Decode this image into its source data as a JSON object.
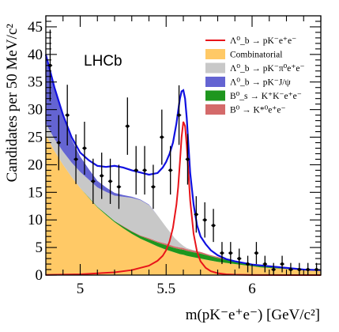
{
  "chart_data": {
    "type": "line",
    "xlabel": "m(pK⁻e⁺e⁻) [GeV/c²]",
    "ylabel": "Candidates per 50 MeV/c²",
    "xlim": [
      4.8,
      6.4
    ],
    "ylim": [
      0,
      47
    ],
    "x_ticks": [
      5,
      5.5,
      6
    ],
    "y_ticks": [
      0,
      5,
      10,
      15,
      20,
      25,
      30,
      35,
      40,
      45
    ],
    "annotation": "LHCb",
    "legend_position": "top-right",
    "grid": false,
    "legend": [
      {
        "label": "Λ⁰_b → pK⁻e⁺e⁻",
        "kind": "line",
        "color": "#e8141a"
      },
      {
        "label": "Combinatorial",
        "kind": "fill",
        "color": "#ffc966"
      },
      {
        "label": "Λ⁰_b → pK⁻π⁰e⁺e⁻",
        "kind": "fill",
        "color": "#c8c8c8"
      },
      {
        "label": "Λ⁰_b → pK⁻J/ψ",
        "kind": "fill",
        "color": "#6464d2"
      },
      {
        "label": "B⁰_s → K⁺K⁻e⁺e⁻",
        "kind": "fill",
        "color": "#1e961e"
      },
      {
        "label": "B⁰ → K*⁰e⁺e⁻",
        "kind": "fill",
        "color": "#d46a6a"
      }
    ],
    "data_points": [
      {
        "x": 4.825,
        "y": 38,
        "err": 6.5
      },
      {
        "x": 4.875,
        "y": 24,
        "err": 5
      },
      {
        "x": 4.925,
        "y": 29,
        "err": 5.5
      },
      {
        "x": 4.975,
        "y": 21,
        "err": 4.5
      },
      {
        "x": 5.025,
        "y": 23,
        "err": 4.8
      },
      {
        "x": 5.075,
        "y": 17,
        "err": 4.1
      },
      {
        "x": 5.125,
        "y": 18,
        "err": 4.2
      },
      {
        "x": 5.175,
        "y": 17,
        "err": 4.1
      },
      {
        "x": 5.225,
        "y": 16,
        "err": 4
      },
      {
        "x": 5.275,
        "y": 27,
        "err": 5.2
      },
      {
        "x": 5.325,
        "y": 19,
        "err": 4.4
      },
      {
        "x": 5.375,
        "y": 19,
        "err": 4.4
      },
      {
        "x": 5.425,
        "y": 16,
        "err": 4
      },
      {
        "x": 5.475,
        "y": 25,
        "err": 5
      },
      {
        "x": 5.525,
        "y": 19,
        "err": 4.4
      },
      {
        "x": 5.575,
        "y": 29,
        "err": 5.4
      },
      {
        "x": 5.625,
        "y": 21,
        "err": 4.6
      },
      {
        "x": 5.675,
        "y": 11,
        "err": 3.3
      },
      {
        "x": 5.725,
        "y": 10,
        "err": 3.2
      },
      {
        "x": 5.775,
        "y": 9,
        "err": 3
      },
      {
        "x": 5.825,
        "y": 4,
        "err": 2
      },
      {
        "x": 5.875,
        "y": 4,
        "err": 2
      },
      {
        "x": 5.925,
        "y": 3,
        "err": 1.8
      },
      {
        "x": 5.975,
        "y": 2,
        "err": 1.5
      },
      {
        "x": 6.025,
        "y": 4,
        "err": 2
      },
      {
        "x": 6.075,
        "y": 2,
        "err": 1.5
      },
      {
        "x": 6.125,
        "y": 1,
        "err": 1.2
      },
      {
        "x": 6.175,
        "y": 2,
        "err": 1.5
      },
      {
        "x": 6.225,
        "y": 1,
        "err": 1.2
      },
      {
        "x": 6.275,
        "y": 1,
        "err": 1.2
      },
      {
        "x": 6.325,
        "y": 1,
        "err": 1.2
      },
      {
        "x": 6.375,
        "y": 1,
        "err": 1.2
      }
    ],
    "series": {
      "x": [
        4.8,
        4.85,
        4.9,
        4.95,
        5.0,
        5.05,
        5.1,
        5.15,
        5.2,
        5.25,
        5.3,
        5.35,
        5.4,
        5.45,
        5.5,
        5.55,
        5.58,
        5.6,
        5.62,
        5.65,
        5.7,
        5.75,
        5.8,
        5.85,
        5.9,
        5.95,
        6.0,
        6.05,
        6.1,
        6.15,
        6.2,
        6.25,
        6.3,
        6.35,
        6.4
      ],
      "combinatorial": [
        25.5,
        22.5,
        20.0,
        17.8,
        15.8,
        14.0,
        12.3,
        10.9,
        9.6,
        8.5,
        7.5,
        6.6,
        5.9,
        5.2,
        4.6,
        4.1,
        3.8,
        3.7,
        3.5,
        3.3,
        3.0,
        2.7,
        2.4,
        2.2,
        2.0,
        1.8,
        1.6,
        1.4,
        1.3,
        1.2,
        1.1,
        1.0,
        0.9,
        0.8,
        0.8
      ],
      "bs_kkee": [
        0.0,
        0.0,
        0.0,
        0.0,
        0.0,
        0.1,
        0.1,
        0.2,
        0.2,
        0.3,
        0.4,
        0.5,
        0.6,
        0.7,
        0.8,
        0.8,
        0.9,
        0.9,
        0.9,
        0.9,
        0.9,
        0.8,
        0.7,
        0.6,
        0.5,
        0.4,
        0.3,
        0.2,
        0.2,
        0.1,
        0.1,
        0.1,
        0.0,
        0.0,
        0.0
      ],
      "b0_kstee": [
        0.0,
        0.0,
        0.0,
        0.0,
        0.0,
        0.0,
        0.0,
        0.0,
        0.0,
        0.1,
        0.1,
        0.1,
        0.2,
        0.2,
        0.3,
        0.3,
        0.3,
        0.3,
        0.3,
        0.3,
        0.3,
        0.2,
        0.2,
        0.1,
        0.1,
        0.1,
        0.0,
        0.0,
        0.0,
        0.0,
        0.0,
        0.0,
        0.0,
        0.0,
        0.0
      ],
      "pkpi0ee": [
        2.0,
        2.2,
        2.4,
        2.6,
        2.9,
        3.2,
        3.5,
        4.0,
        4.6,
        5.3,
        6.0,
        6.4,
        6.0,
        4.7,
        3.0,
        1.5,
        0.8,
        0.4,
        0.2,
        0.1,
        0.0,
        0.0,
        0.0,
        0.0,
        0.0,
        0.0,
        0.0,
        0.0,
        0.0,
        0.0,
        0.0,
        0.0,
        0.0,
        0.0,
        0.0
      ],
      "pkjpsi": [
        12.0,
        9.0,
        6.2,
        4.2,
        2.8,
        1.9,
        1.2,
        0.8,
        0.5,
        0.3,
        0.2,
        0.1,
        0.1,
        0.0,
        0.0,
        0.0,
        0.0,
        0.0,
        0.0,
        0.0,
        0.0,
        0.0,
        0.0,
        0.0,
        0.0,
        0.0,
        0.0,
        0.0,
        0.0,
        0.0,
        0.0,
        0.0,
        0.0,
        0.0,
        0.0
      ],
      "signal_x": [
        4.8,
        5.0,
        5.2,
        5.3,
        5.4,
        5.45,
        5.48,
        5.5,
        5.52,
        5.54,
        5.56,
        5.57,
        5.58,
        5.59,
        5.6,
        5.61,
        5.62,
        5.63,
        5.64,
        5.66,
        5.68,
        5.7,
        5.73,
        5.76,
        5.8,
        5.85,
        5.9,
        6.0,
        6.2,
        6.4
      ],
      "signal": [
        0.05,
        0.15,
        0.5,
        0.9,
        1.7,
        2.6,
        3.5,
        4.5,
        6.1,
        8.6,
        12.8,
        16.0,
        20.5,
        25.0,
        27.8,
        27.0,
        23.5,
        18.5,
        13.5,
        7.5,
        4.2,
        2.5,
        1.3,
        0.7,
        0.35,
        0.15,
        0.07,
        0.02,
        0.0,
        0.0
      ],
      "total_x": [
        4.8,
        4.85,
        4.9,
        4.95,
        5.0,
        5.05,
        5.1,
        5.15,
        5.2,
        5.25,
        5.3,
        5.35,
        5.4,
        5.45,
        5.48,
        5.5,
        5.52,
        5.54,
        5.56,
        5.57,
        5.58,
        5.59,
        5.6,
        5.61,
        5.62,
        5.63,
        5.64,
        5.66,
        5.68,
        5.7,
        5.73,
        5.76,
        5.8,
        5.85,
        5.9,
        6.0,
        6.1,
        6.2,
        6.3,
        6.4
      ],
      "total": [
        40.0,
        34.0,
        29.0,
        25.0,
        22.2,
        20.8,
        19.8,
        19.6,
        19.8,
        19.5,
        19.0,
        18.6,
        18.2,
        18.5,
        19.5,
        20.5,
        22.0,
        24.0,
        27.5,
        29.8,
        32.0,
        33.3,
        33.5,
        32.0,
        28.5,
        23.5,
        18.5,
        12.8,
        9.0,
        7.0,
        5.6,
        4.5,
        3.6,
        2.9,
        2.5,
        1.9,
        1.6,
        1.3,
        1.0,
        0.9
      ]
    }
  }
}
